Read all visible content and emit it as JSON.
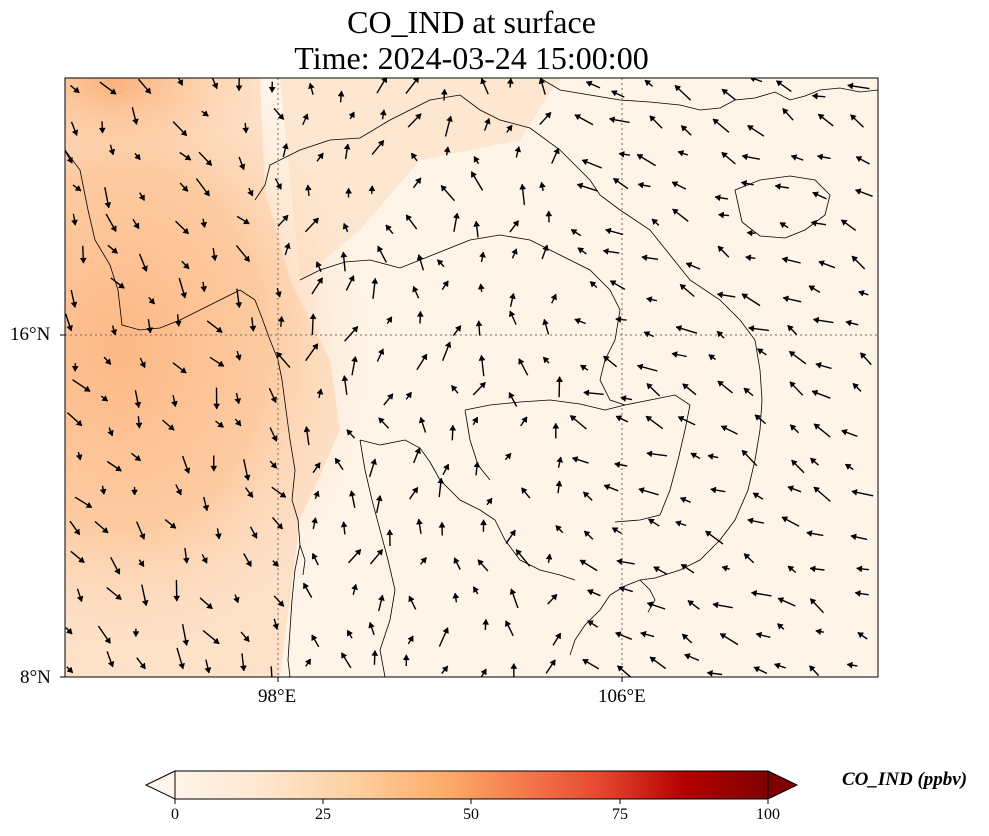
{
  "title": {
    "line1": "CO_IND at surface",
    "line2": "Time: 2024-03-24 15:00:00"
  },
  "map": {
    "lat_ticks": [
      {
        "label": "16°N",
        "value": 16
      },
      {
        "label": "8°N",
        "value": 8
      }
    ],
    "lon_ticks": [
      {
        "label": "98°E",
        "value": 98
      },
      {
        "label": "106°E",
        "value": 106
      }
    ],
    "extent": {
      "lon_min": 93,
      "lon_max": 111.9,
      "lat_min": 8,
      "lat_max": 21.9
    },
    "colors": {
      "low": "#fff5eb",
      "mid": "#fdae6b",
      "high": "#7f0000",
      "coast": "#000000",
      "grid": "#7a6a5a"
    },
    "layers": [
      "co-concentration-field",
      "wind-vector-arrows",
      "coastlines-and-borders",
      "graticule-dotted"
    ]
  },
  "colorbar": {
    "label": "CO_IND (ppbv)",
    "ticks": [
      "0",
      "25",
      "50",
      "75",
      "100"
    ],
    "min": 0,
    "max": 100,
    "extend": "both",
    "colormap": [
      "#fff5eb",
      "#fee6ce",
      "#fdd0a2",
      "#fdae6b",
      "#f16913",
      "#d94801",
      "#a30000",
      "#7f0000"
    ]
  }
}
